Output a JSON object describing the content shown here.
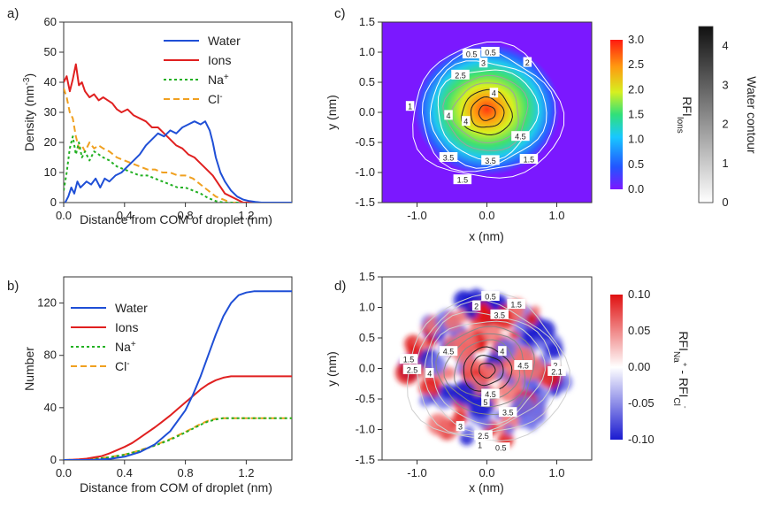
{
  "colors": {
    "water": "#1f4fd6",
    "ions": "#e02020",
    "na": "#22b022",
    "cl": "#f0a020"
  },
  "chart_data": [
    {
      "panel": "a)",
      "type": "line",
      "xlabel": "Distance from COM of droplet (nm)",
      "ylabel_main": "Density (nm",
      "ylabel_sup": "-3",
      "ylabel_end": ")",
      "xlim": [
        0,
        1.5
      ],
      "ylim": [
        0,
        60
      ],
      "xticks": [
        "0.0",
        "0.4",
        "0.8",
        "1.2"
      ],
      "xtick_values": [
        0,
        0.4,
        0.8,
        1.2
      ],
      "yticks": [
        "0",
        "10",
        "20",
        "30",
        "40",
        "50",
        "60"
      ],
      "ytick_values": [
        0,
        10,
        20,
        30,
        40,
        50,
        60
      ],
      "legend_position": "top-right",
      "series": [
        {
          "name": "Water",
          "key": "water",
          "style": "solid",
          "x": [
            0.01,
            0.03,
            0.05,
            0.07,
            0.09,
            0.11,
            0.13,
            0.15,
            0.18,
            0.21,
            0.24,
            0.27,
            0.3,
            0.34,
            0.38,
            0.42,
            0.46,
            0.5,
            0.54,
            0.58,
            0.62,
            0.66,
            0.7,
            0.74,
            0.78,
            0.82,
            0.86,
            0.9,
            0.93,
            0.96,
            0.98,
            1.0,
            1.03,
            1.06,
            1.1,
            1.14,
            1.18,
            1.22,
            1.26,
            1.3,
            1.35,
            1.4,
            1.45,
            1.5
          ],
          "y": [
            0,
            2,
            5,
            3,
            7,
            5,
            6,
            7,
            6,
            8,
            5,
            8,
            7,
            9,
            10,
            12,
            14,
            16,
            19,
            21,
            23,
            22,
            24,
            23,
            25,
            26,
            27,
            26,
            27,
            24,
            20,
            15,
            10,
            7,
            4,
            2,
            1,
            0.5,
            0.2,
            0,
            0,
            0,
            0,
            0
          ]
        },
        {
          "name": "Ions",
          "key": "ions",
          "style": "solid",
          "x": [
            0.0,
            0.02,
            0.04,
            0.06,
            0.08,
            0.1,
            0.12,
            0.14,
            0.17,
            0.2,
            0.23,
            0.26,
            0.29,
            0.32,
            0.35,
            0.38,
            0.42,
            0.46,
            0.5,
            0.54,
            0.58,
            0.62,
            0.66,
            0.7,
            0.74,
            0.78,
            0.82,
            0.86,
            0.9,
            0.94,
            0.98,
            1.02,
            1.06,
            1.1,
            1.14,
            1.18,
            1.25,
            1.35,
            1.5
          ],
          "y": [
            40,
            42,
            37,
            41,
            46,
            39,
            40,
            37,
            35,
            36,
            34,
            35,
            34,
            33,
            31,
            30,
            31,
            29,
            28,
            27,
            25,
            25,
            23,
            21,
            19,
            18,
            16,
            15,
            13,
            11,
            9,
            6,
            3,
            2,
            1,
            0,
            0,
            0,
            0
          ]
        },
        {
          "name": "Na",
          "name_sup": "+",
          "key": "na",
          "style": "dotted",
          "x": [
            0.0,
            0.02,
            0.04,
            0.06,
            0.08,
            0.1,
            0.12,
            0.14,
            0.17,
            0.2,
            0.23,
            0.26,
            0.3,
            0.35,
            0.4,
            0.45,
            0.5,
            0.55,
            0.6,
            0.65,
            0.7,
            0.75,
            0.8,
            0.85,
            0.9,
            0.95,
            1.0,
            1.05,
            1.1,
            1.2,
            1.35,
            1.5
          ],
          "y": [
            4,
            10,
            18,
            22,
            16,
            20,
            15,
            17,
            14,
            17,
            16,
            15,
            14,
            12,
            11,
            10,
            9,
            9,
            8,
            7,
            6,
            5,
            5,
            4,
            3,
            1.5,
            0.5,
            0,
            0,
            0,
            0,
            0
          ]
        },
        {
          "name": "Cl",
          "name_sup": "-",
          "key": "cl",
          "style": "dashed",
          "x": [
            0.0,
            0.02,
            0.04,
            0.06,
            0.08,
            0.1,
            0.12,
            0.14,
            0.17,
            0.2,
            0.23,
            0.26,
            0.3,
            0.35,
            0.4,
            0.45,
            0.5,
            0.55,
            0.6,
            0.65,
            0.7,
            0.75,
            0.8,
            0.85,
            0.9,
            0.95,
            1.0,
            1.05,
            1.1,
            1.2,
            1.35,
            1.5
          ],
          "y": [
            38,
            35,
            30,
            28,
            22,
            18,
            19,
            17,
            20,
            18,
            19,
            18,
            17,
            15,
            14,
            13,
            12,
            11,
            11,
            10,
            10,
            9,
            9,
            8,
            6,
            4,
            2,
            1,
            0,
            0,
            0,
            0
          ]
        }
      ]
    },
    {
      "panel": "b)",
      "type": "line",
      "xlabel": "Distance from COM of droplet (nm)",
      "ylabel_main": "Number",
      "xlim": [
        0,
        1.5
      ],
      "ylim": [
        0,
        140
      ],
      "xticks": [
        "0.0",
        "0.4",
        "0.8",
        "1.2"
      ],
      "xtick_values": [
        0,
        0.4,
        0.8,
        1.2
      ],
      "yticks": [
        "0",
        "40",
        "80",
        "120"
      ],
      "ytick_values": [
        0,
        40,
        80,
        120
      ],
      "legend_position": "top-left",
      "series": [
        {
          "name": "Water",
          "key": "water",
          "style": "solid",
          "x": [
            0,
            0.1,
            0.2,
            0.3,
            0.4,
            0.5,
            0.6,
            0.7,
            0.8,
            0.85,
            0.9,
            0.95,
            1.0,
            1.05,
            1.1,
            1.15,
            1.2,
            1.25,
            1.3,
            1.4,
            1.5
          ],
          "y": [
            0,
            0,
            0.2,
            0.8,
            2.5,
            6,
            12,
            22,
            38,
            50,
            64,
            80,
            96,
            110,
            120,
            126,
            128,
            129,
            129,
            129,
            129
          ]
        },
        {
          "name": "Ions",
          "key": "ions",
          "style": "solid",
          "x": [
            0,
            0.05,
            0.1,
            0.15,
            0.2,
            0.25,
            0.3,
            0.35,
            0.4,
            0.45,
            0.5,
            0.55,
            0.6,
            0.65,
            0.7,
            0.75,
            0.8,
            0.85,
            0.9,
            0.95,
            1.0,
            1.05,
            1.1,
            1.15,
            1.2,
            1.3,
            1.5
          ],
          "y": [
            0,
            0.2,
            0.5,
            1,
            2,
            3,
            5,
            7.5,
            10,
            13,
            17,
            21,
            25,
            29.5,
            34,
            39,
            44,
            49,
            54,
            58,
            61,
            63,
            64,
            64,
            64,
            64,
            64
          ]
        },
        {
          "name": "Na",
          "name_sup": "+",
          "key": "na",
          "style": "dotted",
          "x": [
            0,
            0.1,
            0.2,
            0.3,
            0.4,
            0.5,
            0.6,
            0.7,
            0.8,
            0.85,
            0.9,
            0.95,
            1.0,
            1.05,
            1.1,
            1.2,
            1.3,
            1.5
          ],
          "y": [
            0,
            0.2,
            0.8,
            2,
            4,
            7,
            11,
            15.5,
            21,
            24,
            27,
            29.5,
            31,
            32,
            32,
            32,
            32,
            32
          ]
        },
        {
          "name": "Cl",
          "name_sup": "-",
          "key": "cl",
          "style": "dashed",
          "x": [
            0,
            0.1,
            0.2,
            0.3,
            0.4,
            0.5,
            0.6,
            0.7,
            0.8,
            0.85,
            0.9,
            0.95,
            1.0,
            1.05,
            1.1,
            1.2,
            1.3,
            1.5
          ],
          "y": [
            0,
            0.2,
            0.9,
            2.2,
            4.2,
            7.3,
            11.3,
            16,
            21.5,
            24.5,
            27.5,
            30,
            31.5,
            32,
            32,
            32,
            32,
            32
          ]
        }
      ]
    },
    {
      "panel": "c)",
      "type": "heatmap",
      "xlabel": "x (nm)",
      "ylabel": "y (nm)",
      "xlim": [
        -1.5,
        1.5
      ],
      "ylim": [
        -1.5,
        1.5
      ],
      "xticks": [
        "-1.0",
        "0.0",
        "1.0"
      ],
      "xtick_values": [
        -1.0,
        0.0,
        1.0
      ],
      "yticks": [
        "-1.5",
        "-1.0",
        "-0.5",
        "0.0",
        "0.5",
        "1.0",
        "1.5"
      ],
      "ytick_values": [
        -1.5,
        -1.0,
        -0.5,
        0.0,
        0.5,
        1.0,
        1.5
      ],
      "colorbar": {
        "label_main": "RFI",
        "label_sub": "Ions",
        "range": [
          0.0,
          3.0
        ],
        "ticks": [
          "0.0",
          "0.5",
          "1.0",
          "1.5",
          "2.0",
          "2.5",
          "3.0"
        ],
        "tick_values": [
          0.0,
          0.5,
          1.0,
          1.5,
          2.0,
          2.5,
          3.0
        ]
      },
      "colorbar2": {
        "label": "Water contour",
        "range": [
          0,
          4.5
        ],
        "ticks": [
          "0",
          "1",
          "2",
          "3",
          "4"
        ],
        "tick_values": [
          0,
          1,
          2,
          3,
          4
        ]
      },
      "contour_labels": [
        {
          "text": "0.5",
          "x": -0.22,
          "y": 0.97
        },
        {
          "text": "0.5",
          "x": 0.05,
          "y": 1.0
        },
        {
          "text": "2",
          "x": 0.58,
          "y": 0.83
        },
        {
          "text": "2.5",
          "x": -0.38,
          "y": 0.62
        },
        {
          "text": "3",
          "x": -0.05,
          "y": 0.82
        },
        {
          "text": "1",
          "x": -1.1,
          "y": 0.1
        },
        {
          "text": "4",
          "x": 0.1,
          "y": 0.32
        },
        {
          "text": "4",
          "x": -0.55,
          "y": -0.05
        },
        {
          "text": "4",
          "x": -0.3,
          "y": -0.15
        },
        {
          "text": "4.5",
          "x": 0.48,
          "y": -0.4
        },
        {
          "text": "3.5",
          "x": -0.55,
          "y": -0.75
        },
        {
          "text": "3.5",
          "x": 0.05,
          "y": -0.8
        },
        {
          "text": "1.5",
          "x": 0.6,
          "y": -0.78
        },
        {
          "text": "1.5",
          "x": -0.35,
          "y": -1.12
        }
      ]
    },
    {
      "panel": "d)",
      "type": "heatmap",
      "xlabel": "x (nm)",
      "ylabel": "y (nm)",
      "xlim": [
        -1.5,
        1.5
      ],
      "ylim": [
        -1.5,
        1.5
      ],
      "xticks": [
        "-1.0",
        "0.0",
        "1.0"
      ],
      "xtick_values": [
        -1.0,
        0.0,
        1.0
      ],
      "yticks": [
        "-1.5",
        "-1.0",
        "-0.5",
        "0.0",
        "0.5",
        "1.0",
        "1.5"
      ],
      "ytick_values": [
        -1.5,
        -1.0,
        -0.5,
        0.0,
        0.5,
        1.0,
        1.5
      ],
      "colorbar": {
        "label_a": "RFI",
        "label_a_sub": "Na",
        "label_a_subsup": "+",
        "label_mid": " - RFI",
        "label_b_sub": "Cl",
        "label_b_subsup": "-",
        "range": [
          -0.1,
          0.1
        ],
        "ticks": [
          "-0.10",
          "-0.05",
          "0.00",
          "0.05",
          "0.10"
        ],
        "tick_values": [
          -0.1,
          -0.05,
          0.0,
          0.05,
          0.1
        ]
      },
      "contour_labels": [
        {
          "text": "0.5",
          "x": 0.05,
          "y": 1.18
        },
        {
          "text": "1.5",
          "x": 0.42,
          "y": 1.05
        },
        {
          "text": "2",
          "x": -0.15,
          "y": 1.02
        },
        {
          "text": "3.5",
          "x": 0.18,
          "y": 0.88
        },
        {
          "text": "4.5",
          "x": -0.55,
          "y": 0.28
        },
        {
          "text": "4",
          "x": 0.22,
          "y": 0.28
        },
        {
          "text": "1.5",
          "x": -1.12,
          "y": 0.15
        },
        {
          "text": "2.5",
          "x": -1.07,
          "y": -0.02
        },
        {
          "text": "4",
          "x": -0.82,
          "y": -0.08
        },
        {
          "text": "4.5",
          "x": 0.52,
          "y": 0.05
        },
        {
          "text": "4.5",
          "x": 0.05,
          "y": -0.42
        },
        {
          "text": "5",
          "x": -0.02,
          "y": -0.55
        },
        {
          "text": "2",
          "x": 0.98,
          "y": 0.05
        },
        {
          "text": "2.1",
          "x": 1.0,
          "y": -0.05
        },
        {
          "text": "3",
          "x": -0.38,
          "y": -0.95
        },
        {
          "text": "3.5",
          "x": 0.3,
          "y": -0.72
        },
        {
          "text": "2.5",
          "x": -0.05,
          "y": -1.1
        },
        {
          "text": "1",
          "x": -0.1,
          "y": -1.25
        },
        {
          "text": "0.5",
          "x": 0.2,
          "y": -1.3
        }
      ]
    }
  ]
}
